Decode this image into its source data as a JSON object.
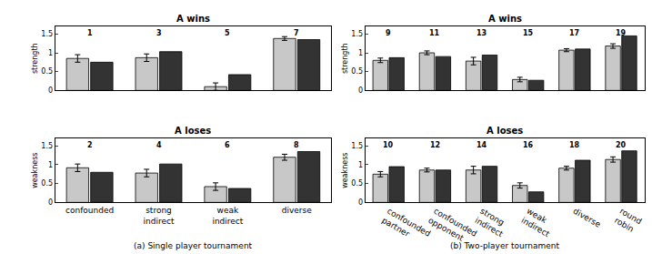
{
  "chart_data": [
    {
      "type": "bar",
      "title": "A wins",
      "ylabel": "strength",
      "categories": [
        "confounded",
        "strong indirect",
        "weak indirect",
        "diverse"
      ],
      "series": [
        {
          "color": "#c8c8c8",
          "values": [
            0.85,
            0.87,
            0.1,
            1.38
          ],
          "errors": [
            0.1,
            0.1,
            0.1,
            0.05
          ]
        },
        {
          "color": "#333333",
          "values": [
            0.75,
            1.03,
            0.42,
            1.35
          ]
        }
      ],
      "annotations": [
        "1",
        "3",
        "5",
        "7"
      ],
      "ylim": [
        0,
        1.7
      ],
      "yticks": [
        0,
        0.5,
        1,
        1.5
      ],
      "tick_labels": "y"
    },
    {
      "type": "bar",
      "title": "A loses",
      "ylabel": "weakness",
      "categories": [
        "confounded",
        "strong indirect",
        "weak indirect",
        "diverse"
      ],
      "series": [
        {
          "color": "#c8c8c8",
          "values": [
            0.92,
            0.78,
            0.42,
            1.2
          ],
          "errors": [
            0.1,
            0.1,
            0.1,
            0.08
          ]
        },
        {
          "color": "#333333",
          "values": [
            0.8,
            1.02,
            0.37,
            1.35
          ]
        }
      ],
      "annotations": [
        "2",
        "4",
        "6",
        "8"
      ],
      "ylim": [
        0,
        1.7
      ],
      "yticks": [
        0,
        0.5,
        1,
        1.5
      ],
      "caption": "(a) Single player tournament"
    },
    {
      "type": "bar",
      "title": "A wins",
      "ylabel": "strength",
      "categories": [
        "confounded partner",
        "confounded opponent",
        "strong indirect",
        "weak indirect",
        "diverse",
        "round robin"
      ],
      "series": [
        {
          "color": "#c8c8c8",
          "values": [
            0.8,
            1.0,
            0.78,
            0.29,
            1.07,
            1.18
          ],
          "errors": [
            0.06,
            0.05,
            0.1,
            0.06,
            0.04,
            0.06
          ]
        },
        {
          "color": "#333333",
          "values": [
            0.87,
            0.9,
            0.94,
            0.27,
            1.1,
            1.45
          ]
        }
      ],
      "annotations": [
        "9",
        "11",
        "13",
        "15",
        "17",
        "19"
      ],
      "ylim": [
        0,
        1.7
      ],
      "yticks": [
        0,
        0.5,
        1,
        1.5
      ],
      "tick_labels": "y"
    },
    {
      "type": "bar",
      "title": "A loses",
      "ylabel": "weakness",
      "categories": [
        "confounded partner",
        "confounded opponent",
        "strong indirect",
        "weak indirect",
        "diverse",
        "round robin"
      ],
      "series": [
        {
          "color": "#c8c8c8",
          "values": [
            0.75,
            0.86,
            0.86,
            0.45,
            0.91,
            1.14
          ],
          "errors": [
            0.07,
            0.05,
            0.1,
            0.07,
            0.05,
            0.07
          ]
        },
        {
          "color": "#333333",
          "values": [
            0.95,
            0.86,
            0.96,
            0.28,
            1.12,
            1.37
          ]
        }
      ],
      "annotations": [
        "10",
        "12",
        "14",
        "16",
        "18",
        "20"
      ],
      "ylim": [
        0,
        1.7
      ],
      "yticks": [
        0,
        0.5,
        1,
        1.5
      ],
      "caption": "(b) Two-player tournament"
    }
  ]
}
